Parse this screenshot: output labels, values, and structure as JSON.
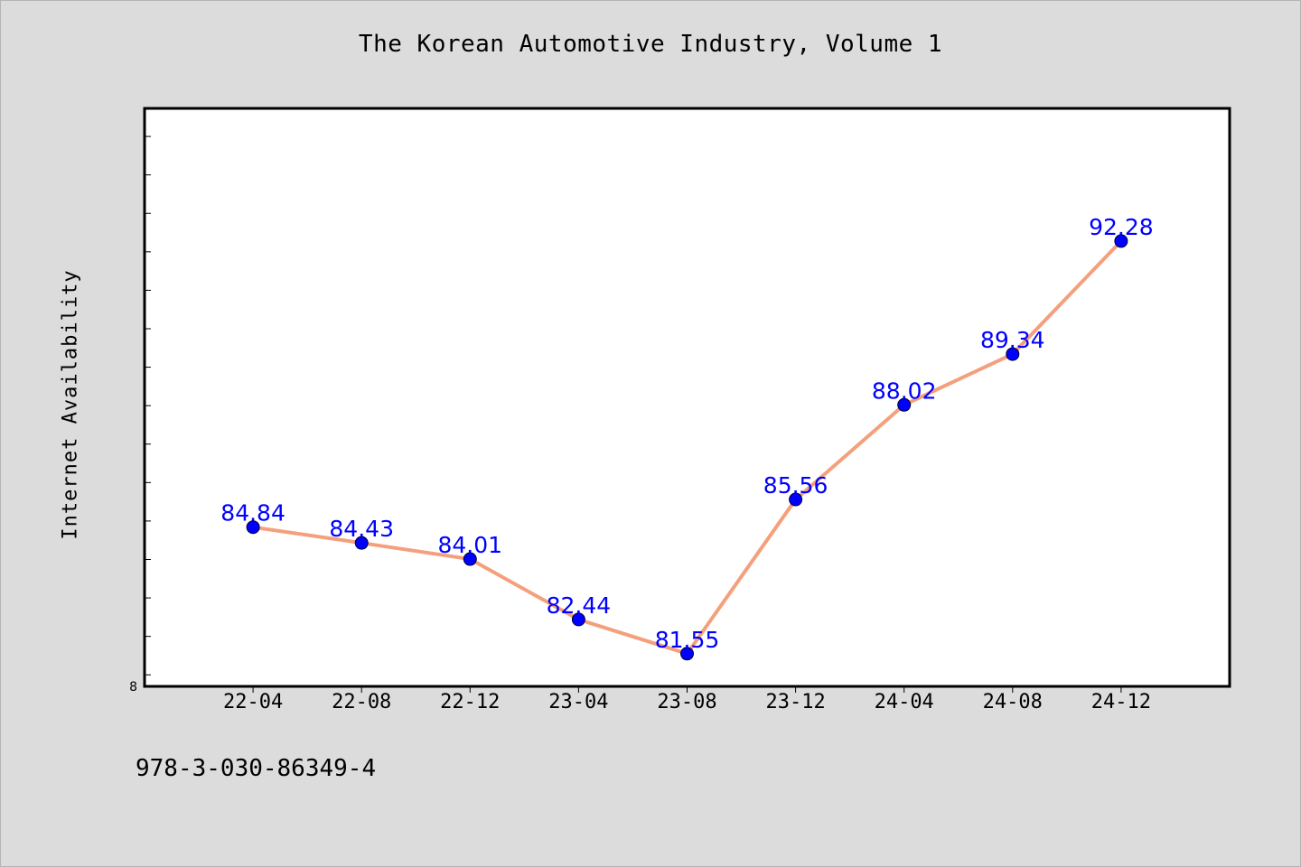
{
  "chart_data": {
    "type": "line",
    "title": "The Korean Automotive Industry, Volume 1",
    "ylabel": "Internet Availability",
    "xlabel": "",
    "categories": [
      "22-04",
      "22-08",
      "22-12",
      "23-04",
      "23-08",
      "23-12",
      "24-04",
      "24-08",
      "24-12"
    ],
    "series": [
      {
        "values": [
          84.84,
          84.43,
          84.01,
          82.44,
          81.55,
          85.56,
          88.02,
          89.34,
          92.28
        ]
      }
    ],
    "data_labels": [
      "84.84",
      "84.43",
      "84.01",
      "82.44",
      "81.55",
      "85.56",
      "88.02",
      "89.34",
      "92.28"
    ],
    "y_tick_labels": [
      "8"
    ],
    "ylim": [
      80.7,
      95.73
    ],
    "y_minor_tick_step": 1,
    "x_range": [
      -1,
      9
    ],
    "grid": false,
    "legend": "none",
    "colors": {
      "line": "#f4a07c",
      "marker": "#0000ff",
      "data_label": "#0000ff",
      "plot_background": "#ffffff",
      "figure_background": "#dcdcdc",
      "axes": "#000000"
    }
  },
  "footer": {
    "isbn": "978-3-030-86349-4"
  }
}
